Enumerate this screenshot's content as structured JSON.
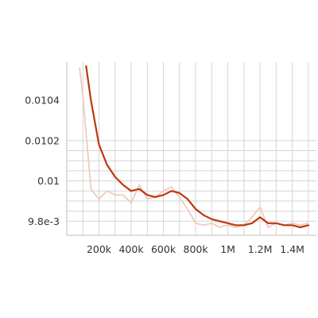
{
  "chart_data": {
    "type": "line",
    "title": "",
    "xlabel": "",
    "ylabel": "",
    "xlim": [
      0,
      1550000
    ],
    "ylim": [
      0.00973,
      0.01059
    ],
    "grid": true,
    "x_ticks": [
      {
        "value": 200000,
        "label": "200k"
      },
      {
        "value": 400000,
        "label": "400k"
      },
      {
        "value": 600000,
        "label": "600k"
      },
      {
        "value": 800000,
        "label": "800k"
      },
      {
        "value": 1000000,
        "label": "1M"
      },
      {
        "value": 1200000,
        "label": "1.2M"
      },
      {
        "value": 1400000,
        "label": "1.4M"
      }
    ],
    "y_ticks": [
      {
        "value": 0.0098,
        "label": "9.8e-3"
      },
      {
        "value": 0.01,
        "label": "0.01"
      },
      {
        "value": 0.0102,
        "label": "0.0102"
      },
      {
        "value": 0.0104,
        "label": "0.0104"
      }
    ],
    "series": [
      {
        "role": "raw",
        "color": "#f2c9bd",
        "x": [
          80000,
          100000,
          150000,
          200000,
          250000,
          300000,
          350000,
          400000,
          450000,
          500000,
          550000,
          600000,
          650000,
          700000,
          750000,
          800000,
          850000,
          900000,
          950000,
          1000000,
          1050000,
          1100000,
          1150000,
          1200000,
          1250000,
          1300000,
          1350000,
          1400000,
          1450000,
          1500000
        ],
        "y": [
          0.01056,
          0.01042,
          0.00996,
          0.00991,
          0.00995,
          0.00993,
          0.00993,
          0.00989,
          0.00998,
          0.00991,
          0.00992,
          0.00995,
          0.00997,
          0.00992,
          0.00986,
          0.00979,
          0.00978,
          0.00979,
          0.00977,
          0.00978,
          0.00977,
          0.00978,
          0.00982,
          0.00987,
          0.00977,
          0.00979,
          0.00978,
          0.00979,
          0.00978,
          0.00979
        ]
      },
      {
        "role": "smoothed",
        "color": "#bf360c",
        "x": [
          120000,
          150000,
          200000,
          250000,
          300000,
          350000,
          400000,
          450000,
          500000,
          550000,
          600000,
          650000,
          700000,
          750000,
          800000,
          850000,
          900000,
          950000,
          1000000,
          1050000,
          1100000,
          1150000,
          1200000,
          1250000,
          1300000,
          1350000,
          1400000,
          1450000,
          1500000
        ],
        "y": [
          0.01057,
          0.0104,
          0.01018,
          0.01008,
          0.01002,
          0.00998,
          0.00995,
          0.00996,
          0.00993,
          0.00992,
          0.00993,
          0.00995,
          0.00994,
          0.00991,
          0.00986,
          0.00983,
          0.00981,
          0.0098,
          0.00979,
          0.00978,
          0.00978,
          0.00979,
          0.00982,
          0.00979,
          0.00979,
          0.00978,
          0.00978,
          0.00977,
          0.00978
        ]
      }
    ]
  }
}
